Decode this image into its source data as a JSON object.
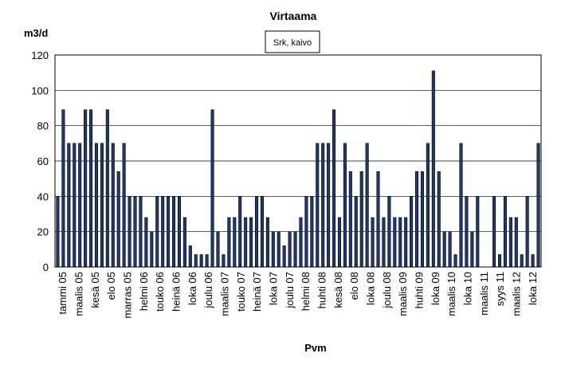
{
  "chart_data": {
    "type": "bar",
    "title": "Virtaama",
    "ylabel": "m3/d",
    "xlabel": "Pvm",
    "legend": [
      "Srk, kaivo"
    ],
    "legend_position": "top-center",
    "grid": true,
    "ylim": [
      0,
      120
    ],
    "yticks": [
      0,
      20,
      40,
      60,
      80,
      100,
      120
    ],
    "x_tick_labels": [
      "tammi 05",
      "maalis 05",
      "kesä 05",
      "elo 05",
      "marras 05",
      "helmi 06",
      "touko 06",
      "heinä 06",
      "loka 06",
      "joulu 06",
      "maalis 07",
      "touko 07",
      "heinä 07",
      "loka 07",
      "joulu 07",
      "helmi 08",
      "huhti 08",
      "kesä 08",
      "elo 08",
      "loka 08",
      "joulu 08",
      "maalis 09",
      "huhti 09",
      "loka 09",
      "maalis 10",
      "loka 10",
      "maalis 11",
      "syys 11",
      "maalis 12",
      "loka 12"
    ],
    "series": [
      {
        "name": "Srk, kaivo",
        "color": "#1F3A6A",
        "values": [
          40,
          89,
          70,
          70,
          70,
          89,
          89,
          70,
          70,
          89,
          70,
          54,
          70,
          40,
          40,
          40,
          28,
          20,
          40,
          40,
          40,
          40,
          40,
          28,
          12,
          7,
          7,
          7,
          89,
          20,
          7,
          28,
          28,
          40,
          28,
          28,
          40,
          40,
          28,
          20,
          20,
          12,
          20,
          20,
          28,
          40,
          40,
          70,
          70,
          70,
          89,
          28,
          70,
          54,
          40,
          54,
          70,
          28,
          54,
          28,
          40,
          28,
          28,
          28,
          40,
          54,
          54,
          70,
          111,
          54,
          20,
          20,
          7,
          70,
          40,
          20,
          40,
          0,
          0,
          40,
          7,
          40,
          28,
          28,
          7,
          40,
          7,
          70
        ]
      }
    ]
  }
}
